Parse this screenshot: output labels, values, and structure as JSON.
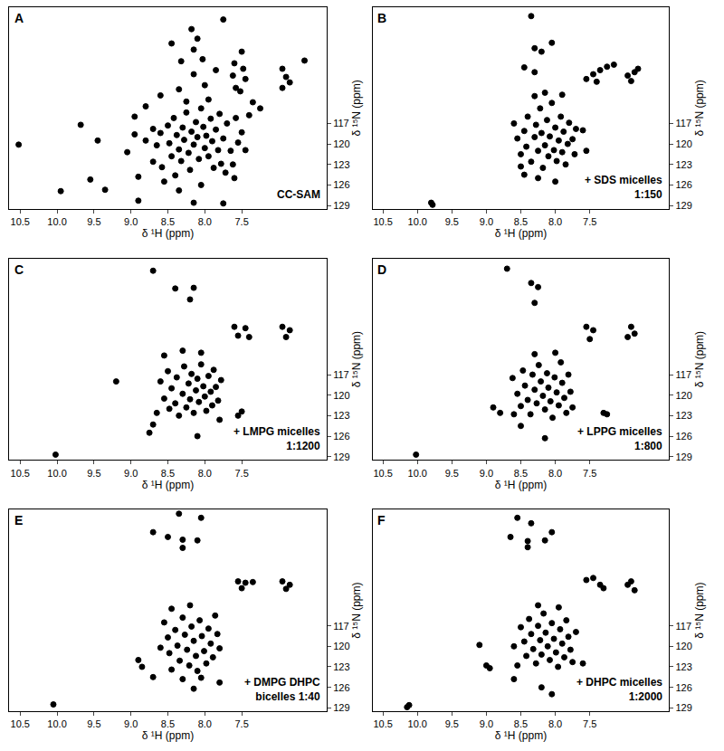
{
  "chart_data": [
    {
      "type": "scatter",
      "title": "A",
      "annotation": [
        "CC-SAM"
      ],
      "x_label": "δ ¹H (ppm)",
      "y_label": "δ ¹⁵N (ppm)",
      "xlim": [
        10.65,
        6.35
      ],
      "ylim": [
        129.5,
        100
      ],
      "xticks": [
        10.5,
        {
          "value": 10,
          "label": "10.0"
        },
        9.5,
        {
          "value": 9,
          "label": "9.0"
        },
        8.5,
        {
          "value": 8,
          "label": "8.0"
        },
        7.5
      ],
      "yticks": [
        117,
        120,
        123,
        126,
        129
      ],
      "grid": false,
      "color": "#000000",
      "marker": "circle",
      "x": [
        10.52,
        9.95,
        9.68,
        9.55,
        9.35,
        9.45,
        9.05,
        8.95,
        8.9,
        8.9,
        8.8,
        8.7,
        8.7,
        8.65,
        8.6,
        8.58,
        8.55,
        8.5,
        8.48,
        8.45,
        8.42,
        8.4,
        8.38,
        8.35,
        8.32,
        8.3,
        8.28,
        8.25,
        8.22,
        8.2,
        8.18,
        8.15,
        8.12,
        8.1,
        8.08,
        8.05,
        8.02,
        8.0,
        7.98,
        7.95,
        7.92,
        7.9,
        7.88,
        7.85,
        7.82,
        7.8,
        7.78,
        7.75,
        7.72,
        7.7,
        7.65,
        7.62,
        7.58,
        7.55,
        7.5,
        7.45,
        8.15,
        7.75,
        8.35,
        8.05,
        7.6,
        7.4,
        7.75,
        8.18,
        8.1,
        8.15,
        8.45,
        8.03,
        8.32,
        7.85,
        8.15,
        8.35,
        8.0,
        7.6,
        7.5,
        7.62,
        7.48,
        7.45,
        7.58,
        7.52,
        6.95,
        6.9,
        6.85,
        6.95,
        6.65,
        7.95,
        8.25,
        8.6,
        7.35,
        7.25,
        8.8,
        8.95
      ],
      "values": [
        120.1,
        126.9,
        117.2,
        125.2,
        126.7,
        119.5,
        121.2,
        118.6,
        128.3,
        124.8,
        119.5,
        117.8,
        122.6,
        120.2,
        118.4,
        123.4,
        125.5,
        117.3,
        119.9,
        121.8,
        116.2,
        124.6,
        118.7,
        120.8,
        122.5,
        117.6,
        119.4,
        115.4,
        121.3,
        123.8,
        118.2,
        120.1,
        116.8,
        119.0,
        122.2,
        114.8,
        117.5,
        120.6,
        118.8,
        121.8,
        116.3,
        119.6,
        123.5,
        117.9,
        120.9,
        115.6,
        122.9,
        119.2,
        124.2,
        117.0,
        121.0,
        123.0,
        116.2,
        119.8,
        118.3,
        120.9,
        128.6,
        128.7,
        126.8,
        126.0,
        125.0,
        115.8,
        101.8,
        103.2,
        104.6,
        106.2,
        105.3,
        107.6,
        107.9,
        109.2,
        109.8,
        112.0,
        111.4,
        108.2,
        106.5,
        110.0,
        109.0,
        110.5,
        111.8,
        112.3,
        109.0,
        110.2,
        111.0,
        111.8,
        107.8,
        113.5,
        113.8,
        112.9,
        113.9,
        114.8,
        114.5,
        116.0
      ]
    },
    {
      "type": "scatter",
      "title": "B",
      "annotation": [
        "+ SDS micelles",
        "1:150"
      ],
      "x_label": "δ ¹H (ppm)",
      "y_label": "δ ¹⁵N (ppm)",
      "xlim": [
        10.65,
        6.35
      ],
      "ylim": [
        129.5,
        100
      ],
      "xticks": [
        10.5,
        {
          "value": 10,
          "label": "10.0"
        },
        9.5,
        {
          "value": 9,
          "label": "9.0"
        },
        8.5,
        {
          "value": 8,
          "label": "8.0"
        },
        7.5
      ],
      "yticks": [
        117,
        120,
        123,
        126,
        129
      ],
      "grid": false,
      "color": "#000000",
      "marker": "circle",
      "x": [
        8.35,
        8.05,
        8.2,
        8.3,
        8.45,
        8.3,
        7.55,
        7.45,
        7.35,
        7.25,
        7.15,
        7.4,
        6.95,
        6.85,
        6.9,
        6.8,
        8.6,
        8.55,
        8.5,
        8.45,
        8.42,
        8.4,
        8.35,
        8.3,
        8.28,
        8.25,
        8.22,
        8.2,
        8.18,
        8.15,
        8.12,
        8.1,
        8.08,
        8.05,
        8.02,
        8.0,
        7.98,
        7.95,
        7.92,
        7.9,
        7.88,
        7.85,
        7.82,
        7.8,
        7.75,
        7.72,
        7.7,
        8.45,
        8.5,
        8.25,
        8.0,
        8.3,
        8.15,
        7.9,
        7.6,
        7.55,
        9.8,
        9.78
      ],
      "values": [
        101.3,
        105.2,
        106.5,
        106.0,
        108.8,
        109.5,
        110.5,
        109.8,
        109.2,
        108.7,
        108.4,
        110.9,
        110.0,
        109.5,
        110.8,
        109.0,
        117.0,
        119.2,
        121.5,
        118.1,
        120.4,
        116.0,
        122.6,
        119.0,
        117.2,
        121.0,
        114.8,
        118.4,
        123.5,
        120.2,
        116.5,
        121.8,
        118.9,
        114.0,
        120.9,
        117.6,
        122.5,
        119.5,
        116.0,
        121.2,
        118.2,
        123.0,
        120.0,
        116.9,
        119.3,
        121.5,
        117.8,
        124.5,
        123.3,
        125.0,
        125.5,
        113.0,
        112.5,
        112.8,
        118.0,
        121.0,
        128.6,
        128.9
      ]
    },
    {
      "type": "scatter",
      "title": "C",
      "annotation": [
        "+ LMPG micelles",
        "1:1200"
      ],
      "x_label": "δ ¹H (ppm)",
      "y_label": "δ ¹⁵N (ppm)",
      "xlim": [
        10.65,
        6.35
      ],
      "ylim": [
        129.5,
        100
      ],
      "xticks": [
        10.5,
        {
          "value": 10,
          "label": "10.0"
        },
        9.5,
        {
          "value": 9,
          "label": "9.0"
        },
        8.5,
        {
          "value": 8,
          "label": "8.0"
        },
        7.5
      ],
      "yticks": [
        117,
        120,
        123,
        126,
        129
      ],
      "grid": false,
      "color": "#000000",
      "marker": "circle",
      "x": [
        8.7,
        8.4,
        8.15,
        8.2,
        7.6,
        7.45,
        7.55,
        7.4,
        6.95,
        6.85,
        6.9,
        8.55,
        8.3,
        8.05,
        9.2,
        8.65,
        8.7,
        8.75,
        7.55,
        7.5,
        10.02,
        8.1,
        8.6,
        8.55,
        8.5,
        8.48,
        8.45,
        8.4,
        8.38,
        8.35,
        8.3,
        8.28,
        8.25,
        8.22,
        8.2,
        8.18,
        8.15,
        8.12,
        8.1,
        8.08,
        8.05,
        8.02,
        8.0,
        7.98,
        7.95,
        7.92,
        7.9,
        7.88,
        7.85,
        7.82,
        7.8,
        7.78
      ],
      "values": [
        101.8,
        104.4,
        104.3,
        106.0,
        110.0,
        110.2,
        111.3,
        111.5,
        110.0,
        110.5,
        111.5,
        114.2,
        113.5,
        113.8,
        118.0,
        122.6,
        124.3,
        125.5,
        123.0,
        122.4,
        128.7,
        126.0,
        118.0,
        120.5,
        116.5,
        122.0,
        119.0,
        121.2,
        117.4,
        123.0,
        119.8,
        115.8,
        121.8,
        118.3,
        120.6,
        116.9,
        122.6,
        119.3,
        117.6,
        121.0,
        115.5,
        118.7,
        120.2,
        122.3,
        117.2,
        119.5,
        121.5,
        116.3,
        118.8,
        120.8,
        123.6,
        117.8
      ]
    },
    {
      "type": "scatter",
      "title": "D",
      "annotation": [
        "+ LPPG micelles",
        "1:800"
      ],
      "x_label": "δ ¹H (ppm)",
      "y_label": "δ ¹⁵N (ppm)",
      "xlim": [
        10.65,
        6.35
      ],
      "ylim": [
        129.5,
        100
      ],
      "xticks": [
        10.5,
        {
          "value": 10,
          "label": "10.0"
        },
        9.5,
        {
          "value": 9,
          "label": "9.0"
        },
        8.5,
        {
          "value": 8,
          "label": "8.0"
        },
        7.5
      ],
      "yticks": [
        117,
        120,
        123,
        126,
        129
      ],
      "grid": false,
      "color": "#000000",
      "marker": "circle",
      "x": [
        8.7,
        8.35,
        8.25,
        8.3,
        7.55,
        7.45,
        7.5,
        6.9,
        6.95,
        6.85,
        8.9,
        8.8,
        8.6,
        7.3,
        7.25,
        8.15,
        10.02,
        8.5,
        8.62,
        8.55,
        8.5,
        8.47,
        8.44,
        8.4,
        8.36,
        8.33,
        8.3,
        8.27,
        8.24,
        8.21,
        8.18,
        8.15,
        8.12,
        8.1,
        8.07,
        8.04,
        8.01,
        7.98,
        7.95,
        7.92,
        7.9,
        7.87,
        7.84,
        7.81,
        7.78,
        7.75,
        8.0,
        8.3
      ],
      "values": [
        101.5,
        103.6,
        104.2,
        106.5,
        110.0,
        110.5,
        111.8,
        110.0,
        111.5,
        111.0,
        121.8,
        122.6,
        122.8,
        122.6,
        122.8,
        126.3,
        128.7,
        124.5,
        117.5,
        119.8,
        121.6,
        116.4,
        118.6,
        120.7,
        122.8,
        117.0,
        119.2,
        121.2,
        115.6,
        118.0,
        120.1,
        122.1,
        116.8,
        118.9,
        120.9,
        123.3,
        117.4,
        119.6,
        121.5,
        115.2,
        118.2,
        120.4,
        122.6,
        117.0,
        119.5,
        121.8,
        113.8,
        114.0
      ]
    },
    {
      "type": "scatter",
      "title": "E",
      "annotation": [
        "+ DMPG DHPC",
        "bicelles 1:40"
      ],
      "x_label": "δ ¹H (ppm)",
      "y_label": "δ ¹⁵N (ppm)",
      "xlim": [
        10.65,
        6.35
      ],
      "ylim": [
        129.5,
        100
      ],
      "xticks": [
        10.5,
        {
          "value": 10,
          "label": "10.0"
        },
        9.5,
        {
          "value": 9,
          "label": "9.0"
        },
        8.5,
        {
          "value": 8,
          "label": "8.0"
        },
        7.5
      ],
      "yticks": [
        117,
        120,
        123,
        126,
        129
      ],
      "grid": false,
      "color": "#000000",
      "marker": "circle",
      "x": [
        8.35,
        8.05,
        8.7,
        8.5,
        8.3,
        8.1,
        8.3,
        7.55,
        7.45,
        7.5,
        7.35,
        6.95,
        6.85,
        6.9,
        8.9,
        8.7,
        8.85,
        10.05,
        8.15,
        7.8,
        8.55,
        8.5,
        8.48,
        8.45,
        8.4,
        8.37,
        8.34,
        8.3,
        8.27,
        8.24,
        8.21,
        8.18,
        8.15,
        8.12,
        8.1,
        8.07,
        8.04,
        8.01,
        7.98,
        7.95,
        7.92,
        7.89,
        7.86,
        7.83,
        7.8,
        8.45,
        8.2,
        8.6,
        8.3,
        8.05
      ],
      "values": [
        100.6,
        101.2,
        103.3,
        104.0,
        104.4,
        104.5,
        105.6,
        110.5,
        110.7,
        111.5,
        110.6,
        110.5,
        111.0,
        111.6,
        122.0,
        124.5,
        123.0,
        128.5,
        126.2,
        125.3,
        116.5,
        118.7,
        121.0,
        123.4,
        117.6,
        119.9,
        122.1,
        115.8,
        118.3,
        120.5,
        122.8,
        117.1,
        119.2,
        121.4,
        123.6,
        116.2,
        118.5,
        120.7,
        122.5,
        117.4,
        119.6,
        121.6,
        115.5,
        118.2,
        120.3,
        114.5,
        114.0,
        120.2,
        124.8,
        124.6
      ]
    },
    {
      "type": "scatter",
      "title": "F",
      "annotation": [
        "+ DHPC micelles",
        "1:2000"
      ],
      "x_label": "δ ¹H (ppm)",
      "y_label": "δ ¹⁵N (ppm)",
      "xlim": [
        10.65,
        6.35
      ],
      "ylim": [
        129.5,
        100
      ],
      "xticks": [
        10.5,
        {
          "value": 10,
          "label": "10.0"
        },
        9.5,
        {
          "value": 9,
          "label": "9.0"
        },
        8.5,
        {
          "value": 8,
          "label": "8.0"
        },
        7.5
      ],
      "yticks": [
        117,
        120,
        123,
        126,
        129
      ],
      "grid": false,
      "color": "#000000",
      "marker": "circle",
      "x": [
        8.55,
        8.35,
        8.05,
        8.65,
        8.4,
        8.15,
        8.4,
        7.55,
        7.45,
        7.35,
        7.3,
        6.95,
        6.9,
        6.85,
        9.1,
        9.0,
        8.95,
        7.6,
        10.12,
        10.15,
        8.6,
        8.2,
        8.05,
        8.5,
        8.45,
        8.42,
        8.38,
        8.35,
        8.32,
        8.28,
        8.25,
        8.22,
        8.2,
        8.17,
        8.14,
        8.11,
        8.08,
        8.05,
        8.02,
        7.99,
        7.96,
        7.93,
        7.9,
        7.87,
        7.84,
        7.81,
        7.78,
        7.75,
        8.55,
        8.6,
        7.7,
        8.25,
        7.95
      ],
      "values": [
        101.2,
        102.0,
        103.3,
        104.0,
        104.6,
        104.5,
        105.5,
        110.3,
        110.0,
        111.0,
        111.5,
        111.0,
        110.5,
        111.8,
        119.8,
        122.8,
        123.2,
        122.5,
        128.6,
        128.9,
        124.8,
        126.0,
        127.0,
        117.2,
        119.3,
        121.4,
        116.0,
        118.2,
        120.4,
        122.5,
        117.0,
        119.1,
        121.2,
        115.2,
        118.0,
        120.0,
        122.0,
        116.6,
        118.9,
        120.9,
        123.0,
        117.5,
        119.6,
        121.6,
        116.2,
        118.6,
        120.5,
        122.3,
        122.8,
        120.0,
        117.9,
        114.0,
        114.3
      ]
    }
  ]
}
